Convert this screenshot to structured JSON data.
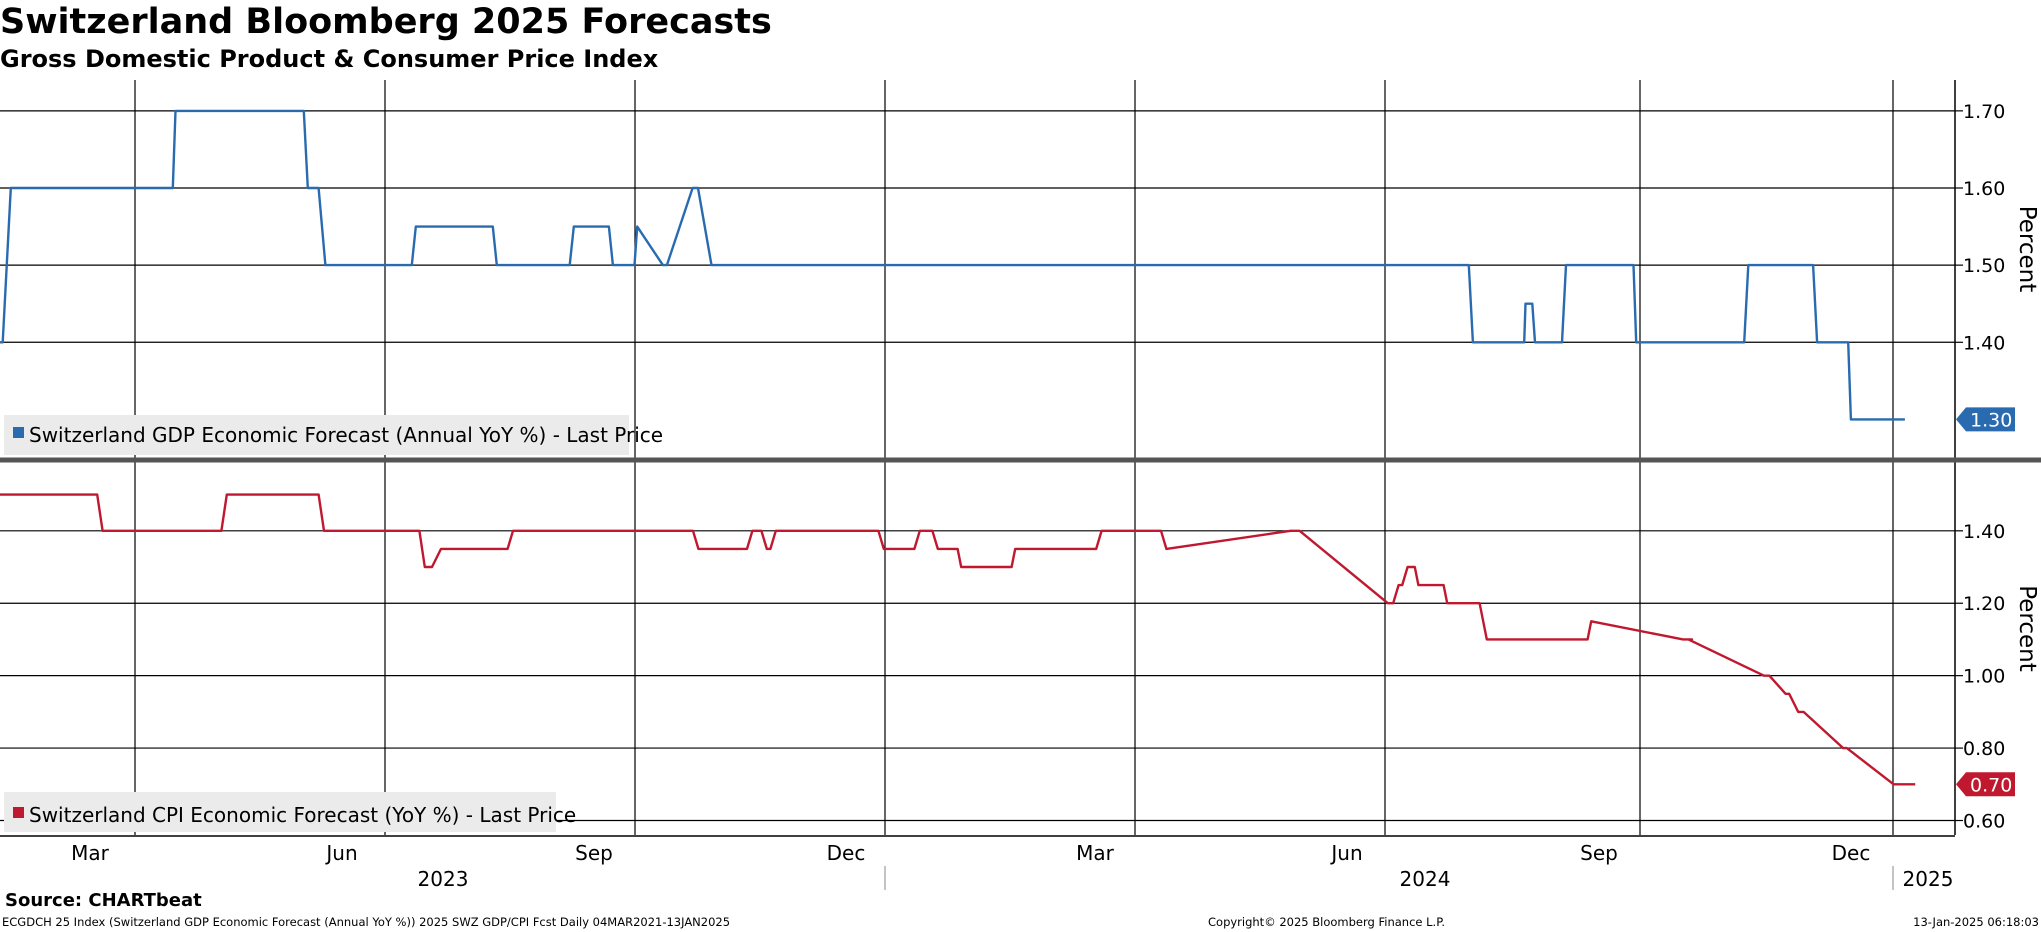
{
  "header": {
    "title": "Switzerland Bloomberg 2025 Forecasts",
    "subtitle": "Gross Domestic Product & Consumer Price Index"
  },
  "footer": {
    "source": "Source: CHARTbeat",
    "description": "ECGDCH 25 Index (Switzerland GDP Economic Forecast (Annual YoY %)) 2025 SWZ GDP/CPI Fcst  Daily 04MAR2021-13JAN2025",
    "copyright": "Copyright© 2025 Bloomberg Finance L.P.",
    "timestamp": "13-Jan-2025 06:18:03"
  },
  "colors": {
    "gdp": "#2a6bb0",
    "cpi": "#c0182f",
    "grid": "#000000",
    "legend_bg": "#ebebeb"
  },
  "chart_data": [
    {
      "type": "line",
      "name": "gdp-panel",
      "ylabel": "Percent",
      "ylim": [
        1.25,
        1.74
      ],
      "yticks": [
        1.7,
        1.6,
        1.5,
        1.4
      ],
      "ytick_labels": [
        "1.70",
        "1.60",
        "1.50",
        "1.40"
      ],
      "series": [
        {
          "name": "Switzerland GDP Economic Forecast (Annual YoY %) - Last Price",
          "color": "#2a6bb0",
          "last_label": "1.30",
          "x": [
            0,
            2,
            8,
            128,
            130,
            225,
            228,
            236,
            241,
            305,
            308,
            365,
            368,
            422,
            425,
            451,
            454,
            470,
            472,
            491,
            494,
            513,
            517,
            527,
            530,
            1088,
            1091,
            1129,
            1130,
            1135,
            1137,
            1157,
            1160,
            1210,
            1212,
            1292,
            1295,
            1343,
            1346,
            1369,
            1371,
            1411
          ],
          "y": [
            1.4,
            1.4,
            1.6,
            1.6,
            1.7,
            1.7,
            1.6,
            1.6,
            1.5,
            1.5,
            1.55,
            1.55,
            1.5,
            1.5,
            1.55,
            1.55,
            1.5,
            1.5,
            1.55,
            1.5,
            1.5,
            1.6,
            1.6,
            1.5,
            1.5,
            1.5,
            1.4,
            1.4,
            1.45,
            1.45,
            1.4,
            1.4,
            1.5,
            1.5,
            1.4,
            1.4,
            1.5,
            1.5,
            1.4,
            1.4,
            1.3,
            1.3
          ]
        }
      ],
      "legend": "top-left"
    },
    {
      "type": "line",
      "name": "cpi-panel",
      "ylabel": "Percent",
      "ylim": [
        0.56,
        1.59
      ],
      "yticks": [
        1.4,
        1.2,
        1.0,
        0.8,
        0.6
      ],
      "ytick_labels": [
        "1.40",
        "1.20",
        "1.00",
        "0.80",
        "0.60"
      ],
      "series": [
        {
          "name": "Switzerland CPI Economic Forecast (YoY %) - Last Price",
          "color": "#c0182f",
          "last_label": "0.70",
          "x": [
            0,
            54,
            57,
            123,
            126,
            177,
            180,
            233,
            236,
            240,
            245,
            282,
            285,
            385,
            388,
            415,
            418,
            423,
            426,
            428,
            431,
            488,
            491,
            508,
            511,
            518,
            521,
            532,
            534,
            562,
            564,
            609,
            612,
            645,
            648,
            717,
            719,
            722,
            771,
            774,
            777,
            779,
            782,
            786,
            788,
            802,
            804,
            822,
            826,
            882,
            884,
            935,
            940,
            938,
            980,
            983,
            992,
            994,
            999,
            1002,
            1024,
            1026,
            1052,
            1060,
            1062,
            1063,
            1064
          ],
          "y": [
            1.5,
            1.5,
            1.4,
            1.4,
            1.5,
            1.5,
            1.4,
            1.4,
            1.3,
            1.3,
            1.35,
            1.35,
            1.4,
            1.4,
            1.35,
            1.35,
            1.4,
            1.4,
            1.35,
            1.35,
            1.4,
            1.4,
            1.35,
            1.35,
            1.4,
            1.4,
            1.35,
            1.35,
            1.3,
            1.3,
            1.35,
            1.35,
            1.4,
            1.4,
            1.35,
            1.4,
            1.4,
            1.4,
            1.2,
            1.2,
            1.25,
            1.25,
            1.3,
            1.3,
            1.25,
            1.25,
            1.2,
            1.2,
            1.1,
            1.1,
            1.15,
            1.1,
            1.1,
            1.1,
            1.0,
            1.0,
            0.95,
            0.95,
            0.9,
            0.9,
            0.8,
            0.8,
            0.7,
            0.7,
            0.7,
            0.7,
            0.7
          ]
        }
      ],
      "legend": "bottom-left"
    }
  ],
  "x_axis": {
    "months": [
      "Mar",
      "Jun",
      "Sep",
      "Dec",
      "Mar",
      "Jun",
      "Sep",
      "Dec"
    ],
    "years": [
      "2023",
      "2024",
      "2025"
    ]
  }
}
